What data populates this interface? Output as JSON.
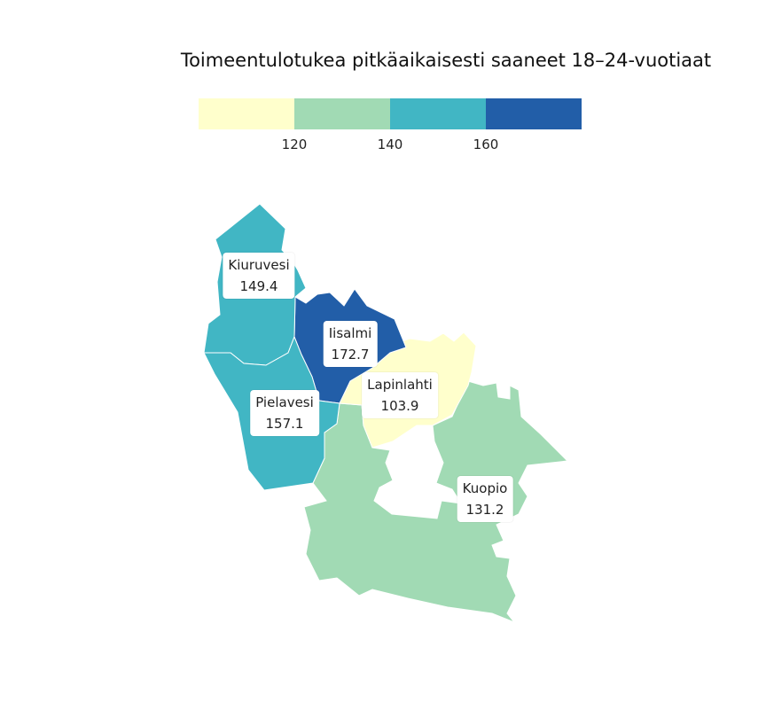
{
  "title": "Toimeentulotukea pitkäaikaisesti saaneet 18–24-vuotiaat",
  "legend": {
    "bins": [
      {
        "color": "#ffffcc"
      },
      {
        "color": "#a1dab4"
      },
      {
        "color": "#41b6c4"
      },
      {
        "color": "#225ea8"
      }
    ],
    "ticks": [
      "120",
      "140",
      "160"
    ]
  },
  "regions": [
    {
      "name": "Kiuruvesi",
      "value": "149.4",
      "color": "#41b6c4"
    },
    {
      "name": "Iisalmi",
      "value": "172.7",
      "color": "#225ea8"
    },
    {
      "name": "Lapinlahti",
      "value": "103.9",
      "color": "#ffffcc"
    },
    {
      "name": "Pielavesi",
      "value": "157.1",
      "color": "#41b6c4"
    },
    {
      "name": "Kuopio",
      "value": "131.2",
      "color": "#a1dab4"
    }
  ]
}
